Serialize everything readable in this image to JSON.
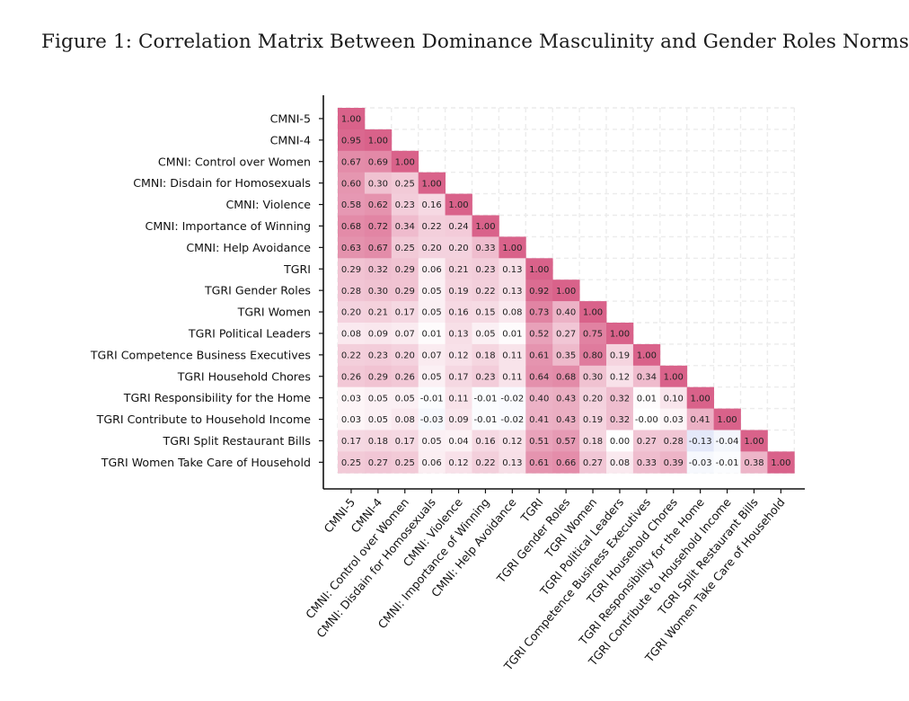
{
  "figure_title": "Figure 1: Correlation Matrix Between Dominance Masculinity and Gender Roles Norms",
  "chart_data": {
    "type": "heatmap",
    "title": "Figure 1: Correlation Matrix Between Dominance Masculinity and Gender Roles Norms",
    "shape": "lower-triangle",
    "labels": [
      "CMNI-5",
      "CMNI-4",
      "CMNI: Control over Women",
      "CMNI: Disdain for Homosexuals",
      "CMNI: Violence",
      "CMNI: Importance of Winning",
      "CMNI: Help Avoidance",
      "TGRI",
      "TGRI Gender Roles",
      "TGRI Women",
      "TGRI Political Leaders",
      "TGRI Competence Business Executives",
      "TGRI Household Chores",
      "TGRI Responsibility for the Home",
      "TGRI Contribute to Household Income",
      "TGRI Split Restaurant Bills",
      "TGRI Women Take Care of Household"
    ],
    "matrix": [
      [
        "1.00"
      ],
      [
        "0.95",
        "1.00"
      ],
      [
        "0.67",
        "0.69",
        "1.00"
      ],
      [
        "0.60",
        "0.30",
        "0.25",
        "1.00"
      ],
      [
        "0.58",
        "0.62",
        "0.23",
        "0.16",
        "1.00"
      ],
      [
        "0.68",
        "0.72",
        "0.34",
        "0.22",
        "0.24",
        "1.00"
      ],
      [
        "0.63",
        "0.67",
        "0.25",
        "0.20",
        "0.20",
        "0.33",
        "1.00"
      ],
      [
        "0.29",
        "0.32",
        "0.29",
        "0.06",
        "0.21",
        "0.23",
        "0.13",
        "1.00"
      ],
      [
        "0.28",
        "0.30",
        "0.29",
        "0.05",
        "0.19",
        "0.22",
        "0.13",
        "0.92",
        "1.00"
      ],
      [
        "0.20",
        "0.21",
        "0.17",
        "0.05",
        "0.16",
        "0.15",
        "0.08",
        "0.73",
        "0.40",
        "1.00"
      ],
      [
        "0.08",
        "0.09",
        "0.07",
        "0.01",
        "0.13",
        "0.05",
        "0.01",
        "0.52",
        "0.27",
        "0.75",
        "1.00"
      ],
      [
        "0.22",
        "0.23",
        "0.20",
        "0.07",
        "0.12",
        "0.18",
        "0.11",
        "0.61",
        "0.35",
        "0.80",
        "0.19",
        "1.00"
      ],
      [
        "0.26",
        "0.29",
        "0.26",
        "0.05",
        "0.17",
        "0.23",
        "0.11",
        "0.64",
        "0.68",
        "0.30",
        "0.12",
        "0.34",
        "1.00"
      ],
      [
        "0.03",
        "0.05",
        "0.05",
        "-0.01",
        "0.11",
        "-0.01",
        "-0.02",
        "0.40",
        "0.43",
        "0.20",
        "0.32",
        "0.01",
        "0.10",
        "1.00"
      ],
      [
        "0.03",
        "0.05",
        "0.08",
        "-0.03",
        "0.09",
        "-0.01",
        "-0.02",
        "0.41",
        "0.43",
        "0.19",
        "0.32",
        "-0.00",
        "0.03",
        "0.41",
        "1.00"
      ],
      [
        "0.17",
        "0.18",
        "0.17",
        "0.05",
        "0.04",
        "0.16",
        "0.12",
        "0.51",
        "0.57",
        "0.18",
        "0.00",
        "0.27",
        "0.28",
        "-0.13",
        "-0.04",
        "1.00"
      ],
      [
        "0.25",
        "0.27",
        "0.25",
        "0.06",
        "0.12",
        "0.22",
        "0.13",
        "0.61",
        "0.66",
        "0.27",
        "0.08",
        "0.33",
        "0.39",
        "-0.03",
        "-0.01",
        "0.38",
        "1.00"
      ]
    ],
    "colors": {
      "positive": "#d9628a",
      "negative": "#7b8fe0",
      "neutral": "#ffffff"
    },
    "grid": true
  }
}
